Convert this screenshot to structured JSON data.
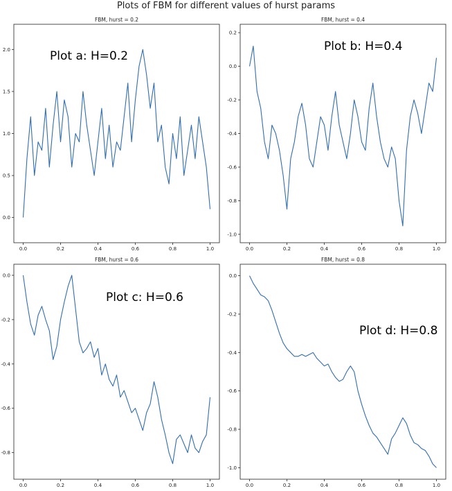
{
  "figure_title": "Plots of FBM for different values of hurst params",
  "chart_data": [
    {
      "type": "line",
      "title": "FBM, hurst = 0.2",
      "annotation": "Plot a: H=0.2",
      "hurst": 0.2,
      "xlim": [
        -0.05,
        1.05
      ],
      "ylim": [
        -0.3,
        2.3
      ],
      "xticks": [
        0.0,
        0.2,
        0.4,
        0.6,
        0.8,
        1.0
      ],
      "yticks": [
        0.0,
        0.5,
        1.0,
        1.5,
        2.0
      ],
      "xtick_labels": [
        "0.0",
        "0.2",
        "0.4",
        "0.6",
        "0.8",
        "1.0"
      ],
      "ytick_labels": [
        "0.0",
        "0.5",
        "1.0",
        "1.5",
        "2.0"
      ],
      "series": [
        {
          "color": "#2f6db4",
          "x": [
            0.0,
            0.02,
            0.04,
            0.06,
            0.08,
            0.1,
            0.12,
            0.14,
            0.16,
            0.18,
            0.2,
            0.22,
            0.24,
            0.26,
            0.28,
            0.3,
            0.32,
            0.34,
            0.36,
            0.38,
            0.4,
            0.42,
            0.44,
            0.46,
            0.48,
            0.5,
            0.52,
            0.54,
            0.56,
            0.58,
            0.6,
            0.62,
            0.64,
            0.66,
            0.68,
            0.7,
            0.72,
            0.74,
            0.76,
            0.78,
            0.8,
            0.82,
            0.84,
            0.86,
            0.88,
            0.9,
            0.92,
            0.94,
            0.96,
            0.98,
            1.0
          ],
          "y": [
            0.0,
            0.7,
            1.2,
            0.5,
            0.9,
            0.8,
            1.3,
            0.6,
            1.1,
            1.5,
            0.9,
            1.4,
            1.2,
            0.6,
            1.0,
            0.9,
            1.5,
            1.1,
            0.8,
            0.5,
            0.9,
            1.3,
            0.7,
            1.1,
            0.6,
            0.9,
            0.8,
            1.2,
            1.6,
            0.9,
            1.4,
            1.8,
            2.0,
            1.7,
            1.3,
            1.6,
            0.9,
            1.1,
            0.6,
            0.4,
            1.0,
            0.7,
            1.2,
            0.5,
            0.8,
            1.1,
            0.7,
            1.2,
            0.9,
            0.6,
            0.1
          ]
        }
      ]
    },
    {
      "type": "line",
      "title": "FBM, hurst = 0.4",
      "annotation": "Plot b: H=0.4",
      "hurst": 0.4,
      "xlim": [
        -0.05,
        1.05
      ],
      "ylim": [
        -1.05,
        0.25
      ],
      "xticks": [
        0.0,
        0.2,
        0.4,
        0.6,
        0.8,
        1.0
      ],
      "yticks": [
        -1.0,
        -0.8,
        -0.6,
        -0.4,
        -0.2,
        0.0,
        0.2
      ],
      "xtick_labels": [
        "0.0",
        "0.2",
        "0.4",
        "0.6",
        "0.8",
        "1.0"
      ],
      "ytick_labels": [
        "-1.0",
        "-0.8",
        "-0.6",
        "-0.4",
        "-0.2",
        "0.0",
        "0.2"
      ],
      "series": [
        {
          "color": "#2f6db4",
          "x": [
            0.0,
            0.02,
            0.04,
            0.06,
            0.08,
            0.1,
            0.12,
            0.14,
            0.16,
            0.18,
            0.2,
            0.22,
            0.24,
            0.26,
            0.28,
            0.3,
            0.32,
            0.34,
            0.36,
            0.38,
            0.4,
            0.42,
            0.44,
            0.46,
            0.48,
            0.5,
            0.52,
            0.54,
            0.56,
            0.58,
            0.6,
            0.62,
            0.64,
            0.66,
            0.68,
            0.7,
            0.72,
            0.74,
            0.76,
            0.78,
            0.8,
            0.82,
            0.84,
            0.86,
            0.88,
            0.9,
            0.92,
            0.94,
            0.96,
            0.98,
            1.0
          ],
          "y": [
            0.0,
            0.12,
            -0.15,
            -0.25,
            -0.45,
            -0.55,
            -0.35,
            -0.4,
            -0.5,
            -0.65,
            -0.85,
            -0.55,
            -0.45,
            -0.3,
            -0.22,
            -0.35,
            -0.55,
            -0.6,
            -0.45,
            -0.3,
            -0.35,
            -0.5,
            -0.3,
            -0.15,
            -0.35,
            -0.45,
            -0.55,
            -0.4,
            -0.2,
            -0.3,
            -0.45,
            -0.5,
            -0.25,
            -0.1,
            -0.3,
            -0.45,
            -0.55,
            -0.6,
            -0.48,
            -0.55,
            -0.8,
            -0.95,
            -0.5,
            -0.3,
            -0.2,
            -0.28,
            -0.4,
            -0.25,
            -0.1,
            -0.15,
            0.05
          ]
        }
      ]
    },
    {
      "type": "line",
      "title": "FBM, hurst = 0.6",
      "annotation": "Plot c: H=0.6",
      "hurst": 0.6,
      "xlim": [
        -0.05,
        1.05
      ],
      "ylim": [
        -0.92,
        0.05
      ],
      "xticks": [
        0.0,
        0.2,
        0.4,
        0.6,
        0.8,
        1.0
      ],
      "yticks": [
        -0.8,
        -0.6,
        -0.4,
        -0.2,
        0.0
      ],
      "xtick_labels": [
        "0.0",
        "0.2",
        "0.4",
        "0.6",
        "0.8",
        "1.0"
      ],
      "ytick_labels": [
        "-0.8",
        "-0.6",
        "-0.4",
        "-0.2",
        "0.0"
      ],
      "series": [
        {
          "color": "#2f6db4",
          "x": [
            0.0,
            0.02,
            0.04,
            0.06,
            0.08,
            0.1,
            0.12,
            0.14,
            0.16,
            0.18,
            0.2,
            0.22,
            0.24,
            0.26,
            0.28,
            0.3,
            0.32,
            0.34,
            0.36,
            0.38,
            0.4,
            0.42,
            0.44,
            0.46,
            0.48,
            0.5,
            0.52,
            0.54,
            0.56,
            0.58,
            0.6,
            0.62,
            0.64,
            0.66,
            0.68,
            0.7,
            0.72,
            0.74,
            0.76,
            0.78,
            0.8,
            0.82,
            0.84,
            0.86,
            0.88,
            0.9,
            0.92,
            0.94,
            0.96,
            0.98,
            1.0
          ],
          "y": [
            0.0,
            -0.12,
            -0.22,
            -0.27,
            -0.18,
            -0.14,
            -0.2,
            -0.25,
            -0.38,
            -0.32,
            -0.2,
            -0.12,
            -0.05,
            0.0,
            -0.15,
            -0.3,
            -0.35,
            -0.33,
            -0.3,
            -0.37,
            -0.33,
            -0.45,
            -0.4,
            -0.47,
            -0.5,
            -0.45,
            -0.55,
            -0.52,
            -0.57,
            -0.62,
            -0.6,
            -0.65,
            -0.7,
            -0.62,
            -0.58,
            -0.48,
            -0.55,
            -0.65,
            -0.72,
            -0.8,
            -0.85,
            -0.74,
            -0.72,
            -0.76,
            -0.8,
            -0.72,
            -0.78,
            -0.8,
            -0.75,
            -0.72,
            -0.55
          ]
        }
      ]
    },
    {
      "type": "line",
      "title": "FBM, hurst = 0.8",
      "annotation": "Plot d: H=0.8",
      "hurst": 0.8,
      "xlim": [
        -0.05,
        1.05
      ],
      "ylim": [
        -1.06,
        0.06
      ],
      "xticks": [
        0.0,
        0.2,
        0.4,
        0.6,
        0.8,
        1.0
      ],
      "yticks": [
        -1.0,
        -0.8,
        -0.6,
        -0.4,
        -0.2,
        0.0
      ],
      "xtick_labels": [
        "0.0",
        "0.2",
        "0.4",
        "0.6",
        "0.8",
        "1.0"
      ],
      "ytick_labels": [
        "-1.0",
        "-0.8",
        "-0.6",
        "-0.4",
        "-0.2",
        "0.0"
      ],
      "series": [
        {
          "color": "#2f6db4",
          "x": [
            0.0,
            0.02,
            0.04,
            0.06,
            0.08,
            0.1,
            0.12,
            0.14,
            0.16,
            0.18,
            0.2,
            0.22,
            0.24,
            0.26,
            0.28,
            0.3,
            0.32,
            0.34,
            0.36,
            0.38,
            0.4,
            0.42,
            0.44,
            0.46,
            0.48,
            0.5,
            0.52,
            0.54,
            0.56,
            0.58,
            0.6,
            0.62,
            0.64,
            0.66,
            0.68,
            0.7,
            0.72,
            0.74,
            0.76,
            0.78,
            0.8,
            0.82,
            0.84,
            0.86,
            0.88,
            0.9,
            0.92,
            0.94,
            0.96,
            0.98,
            1.0
          ],
          "y": [
            0.0,
            -0.04,
            -0.07,
            -0.1,
            -0.11,
            -0.13,
            -0.18,
            -0.24,
            -0.3,
            -0.35,
            -0.38,
            -0.4,
            -0.42,
            -0.42,
            -0.41,
            -0.42,
            -0.41,
            -0.4,
            -0.43,
            -0.45,
            -0.47,
            -0.46,
            -0.5,
            -0.53,
            -0.55,
            -0.54,
            -0.5,
            -0.47,
            -0.5,
            -0.6,
            -0.67,
            -0.73,
            -0.78,
            -0.82,
            -0.84,
            -0.87,
            -0.9,
            -0.93,
            -0.85,
            -0.82,
            -0.78,
            -0.74,
            -0.77,
            -0.83,
            -0.87,
            -0.88,
            -0.9,
            -0.91,
            -0.94,
            -0.98,
            -1.0
          ]
        }
      ]
    }
  ]
}
